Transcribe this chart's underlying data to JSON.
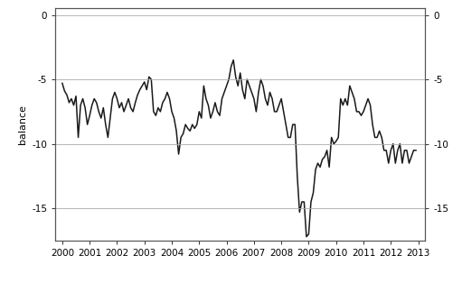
{
  "title": "",
  "ylabel": "balance",
  "ylim": [
    -17.5,
    0.5
  ],
  "xlim": [
    1999.75,
    2013.25
  ],
  "yticks": [
    0,
    -5,
    -10,
    -15
  ],
  "xtick_years": [
    2000,
    2001,
    2002,
    2003,
    2004,
    2005,
    2006,
    2007,
    2008,
    2009,
    2010,
    2011,
    2012,
    2013
  ],
  "line_color": "#1a1a1a",
  "line_width": 1.1,
  "background_color": "#ffffff",
  "grid_color": "#aaaaaa",
  "spine_color": "#555555",
  "tick_color": "#333333",
  "label_fontsize": 7.5,
  "ylabel_fontsize": 8,
  "data": [
    [
      2000.0,
      -5.3
    ],
    [
      2000.083,
      -5.9
    ],
    [
      2000.167,
      -6.2
    ],
    [
      2000.25,
      -6.8
    ],
    [
      2000.333,
      -6.5
    ],
    [
      2000.417,
      -7.0
    ],
    [
      2000.5,
      -6.3
    ],
    [
      2000.583,
      -9.5
    ],
    [
      2000.667,
      -7.0
    ],
    [
      2000.75,
      -6.5
    ],
    [
      2000.833,
      -7.2
    ],
    [
      2000.917,
      -8.5
    ],
    [
      2001.0,
      -7.8
    ],
    [
      2001.083,
      -7.0
    ],
    [
      2001.167,
      -6.5
    ],
    [
      2001.25,
      -6.8
    ],
    [
      2001.333,
      -7.5
    ],
    [
      2001.417,
      -8.0
    ],
    [
      2001.5,
      -7.2
    ],
    [
      2001.583,
      -8.5
    ],
    [
      2001.667,
      -9.5
    ],
    [
      2001.75,
      -8.0
    ],
    [
      2001.833,
      -6.5
    ],
    [
      2001.917,
      -6.0
    ],
    [
      2002.0,
      -6.5
    ],
    [
      2002.083,
      -7.2
    ],
    [
      2002.167,
      -6.8
    ],
    [
      2002.25,
      -7.5
    ],
    [
      2002.333,
      -7.0
    ],
    [
      2002.417,
      -6.5
    ],
    [
      2002.5,
      -7.2
    ],
    [
      2002.583,
      -7.5
    ],
    [
      2002.667,
      -6.8
    ],
    [
      2002.75,
      -6.2
    ],
    [
      2002.833,
      -5.8
    ],
    [
      2002.917,
      -5.5
    ],
    [
      2003.0,
      -5.2
    ],
    [
      2003.083,
      -5.8
    ],
    [
      2003.167,
      -4.8
    ],
    [
      2003.25,
      -5.0
    ],
    [
      2003.333,
      -7.5
    ],
    [
      2003.417,
      -7.8
    ],
    [
      2003.5,
      -7.2
    ],
    [
      2003.583,
      -7.5
    ],
    [
      2003.667,
      -6.8
    ],
    [
      2003.75,
      -6.5
    ],
    [
      2003.833,
      -6.0
    ],
    [
      2003.917,
      -6.5
    ],
    [
      2004.0,
      -7.5
    ],
    [
      2004.083,
      -8.0
    ],
    [
      2004.167,
      -9.0
    ],
    [
      2004.25,
      -10.8
    ],
    [
      2004.333,
      -9.5
    ],
    [
      2004.417,
      -9.2
    ],
    [
      2004.5,
      -8.5
    ],
    [
      2004.583,
      -8.8
    ],
    [
      2004.667,
      -9.0
    ],
    [
      2004.75,
      -8.5
    ],
    [
      2004.833,
      -8.8
    ],
    [
      2004.917,
      -8.5
    ],
    [
      2005.0,
      -7.5
    ],
    [
      2005.083,
      -8.0
    ],
    [
      2005.167,
      -5.5
    ],
    [
      2005.25,
      -6.5
    ],
    [
      2005.333,
      -7.0
    ],
    [
      2005.417,
      -8.0
    ],
    [
      2005.5,
      -7.5
    ],
    [
      2005.583,
      -6.8
    ],
    [
      2005.667,
      -7.5
    ],
    [
      2005.75,
      -7.8
    ],
    [
      2005.833,
      -6.5
    ],
    [
      2005.917,
      -6.0
    ],
    [
      2006.0,
      -5.5
    ],
    [
      2006.083,
      -5.0
    ],
    [
      2006.167,
      -4.0
    ],
    [
      2006.25,
      -3.5
    ],
    [
      2006.333,
      -4.8
    ],
    [
      2006.417,
      -5.5
    ],
    [
      2006.5,
      -4.5
    ],
    [
      2006.583,
      -5.8
    ],
    [
      2006.667,
      -6.5
    ],
    [
      2006.75,
      -5.0
    ],
    [
      2006.833,
      -5.5
    ],
    [
      2006.917,
      -6.0
    ],
    [
      2007.0,
      -6.5
    ],
    [
      2007.083,
      -7.5
    ],
    [
      2007.167,
      -6.0
    ],
    [
      2007.25,
      -5.0
    ],
    [
      2007.333,
      -5.5
    ],
    [
      2007.417,
      -6.5
    ],
    [
      2007.5,
      -7.0
    ],
    [
      2007.583,
      -6.0
    ],
    [
      2007.667,
      -6.5
    ],
    [
      2007.75,
      -7.5
    ],
    [
      2007.833,
      -7.5
    ],
    [
      2007.917,
      -7.0
    ],
    [
      2008.0,
      -6.5
    ],
    [
      2008.083,
      -7.5
    ],
    [
      2008.167,
      -8.5
    ],
    [
      2008.25,
      -9.5
    ],
    [
      2008.333,
      -9.5
    ],
    [
      2008.417,
      -8.5
    ],
    [
      2008.5,
      -8.5
    ],
    [
      2008.583,
      -12.5
    ],
    [
      2008.667,
      -15.3
    ],
    [
      2008.75,
      -14.5
    ],
    [
      2008.833,
      -14.5
    ],
    [
      2008.917,
      -17.2
    ],
    [
      2009.0,
      -17.0
    ],
    [
      2009.083,
      -14.5
    ],
    [
      2009.167,
      -13.8
    ],
    [
      2009.25,
      -12.0
    ],
    [
      2009.333,
      -11.5
    ],
    [
      2009.417,
      -11.8
    ],
    [
      2009.5,
      -11.2
    ],
    [
      2009.583,
      -11.0
    ],
    [
      2009.667,
      -10.5
    ],
    [
      2009.75,
      -11.8
    ],
    [
      2009.833,
      -9.5
    ],
    [
      2009.917,
      -10.0
    ],
    [
      2010.0,
      -9.8
    ],
    [
      2010.083,
      -9.5
    ],
    [
      2010.167,
      -6.5
    ],
    [
      2010.25,
      -7.0
    ],
    [
      2010.333,
      -6.5
    ],
    [
      2010.417,
      -7.0
    ],
    [
      2010.5,
      -5.5
    ],
    [
      2010.583,
      -6.0
    ],
    [
      2010.667,
      -6.5
    ],
    [
      2010.75,
      -7.5
    ],
    [
      2010.833,
      -7.5
    ],
    [
      2010.917,
      -7.8
    ],
    [
      2011.0,
      -7.5
    ],
    [
      2011.083,
      -7.0
    ],
    [
      2011.167,
      -6.5
    ],
    [
      2011.25,
      -7.0
    ],
    [
      2011.333,
      -8.5
    ],
    [
      2011.417,
      -9.5
    ],
    [
      2011.5,
      -9.5
    ],
    [
      2011.583,
      -9.0
    ],
    [
      2011.667,
      -9.5
    ],
    [
      2011.75,
      -10.5
    ],
    [
      2011.833,
      -10.5
    ],
    [
      2011.917,
      -11.5
    ],
    [
      2012.0,
      -10.5
    ],
    [
      2012.083,
      -10.0
    ],
    [
      2012.167,
      -11.5
    ],
    [
      2012.25,
      -10.5
    ],
    [
      2012.333,
      -10.0
    ],
    [
      2012.417,
      -11.5
    ],
    [
      2012.5,
      -10.5
    ],
    [
      2012.583,
      -10.5
    ],
    [
      2012.667,
      -11.5
    ],
    [
      2012.75,
      -11.0
    ],
    [
      2012.833,
      -10.5
    ],
    [
      2012.917,
      -10.5
    ]
  ]
}
